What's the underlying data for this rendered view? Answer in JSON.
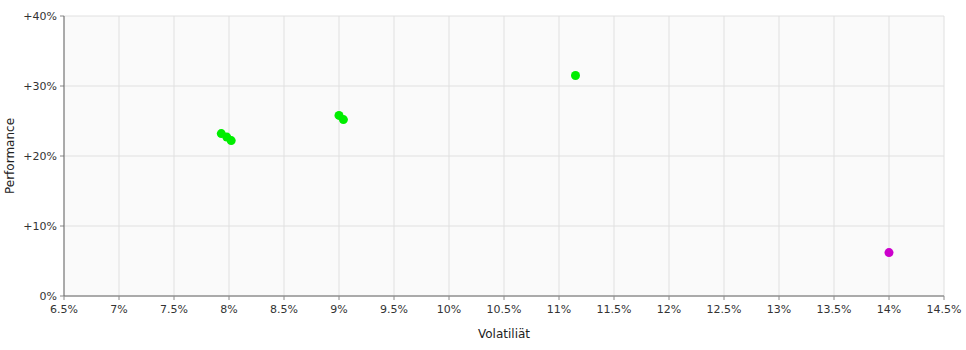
{
  "chart_data": {
    "type": "scatter",
    "xlabel": "Volatiliät",
    "ylabel": "Performance",
    "series": [
      {
        "color": "#00ee00",
        "x": [
          0.0793,
          0.0798,
          0.0802,
          0.09,
          0.0904,
          0.1115
        ],
        "values": [
          0.232,
          0.227,
          0.222,
          0.258,
          0.252,
          0.315
        ]
      },
      {
        "color": "#cc00cc",
        "x": [
          0.14
        ],
        "values": [
          0.062
        ]
      }
    ],
    "xlim": [
      0.065,
      0.145
    ],
    "ylim": [
      0.0,
      0.4
    ],
    "xticks": [
      {
        "value": 0.065,
        "label": "6.5%"
      },
      {
        "value": 0.07,
        "label": "7%"
      },
      {
        "value": 0.075,
        "label": "7.5%"
      },
      {
        "value": 0.08,
        "label": "8%"
      },
      {
        "value": 0.085,
        "label": "8.5%"
      },
      {
        "value": 0.09,
        "label": "9%"
      },
      {
        "value": 0.095,
        "label": "9.5%"
      },
      {
        "value": 0.1,
        "label": "10%"
      },
      {
        "value": 0.105,
        "label": "10.5%"
      },
      {
        "value": 0.11,
        "label": "11%"
      },
      {
        "value": 0.115,
        "label": "11.5%"
      },
      {
        "value": 0.12,
        "label": "12%"
      },
      {
        "value": 0.125,
        "label": "12.5%"
      },
      {
        "value": 0.13,
        "label": "13%"
      },
      {
        "value": 0.135,
        "label": "13.5%"
      },
      {
        "value": 0.14,
        "label": "14%"
      },
      {
        "value": 0.145,
        "label": "14.5%"
      }
    ],
    "yticks": [
      {
        "value": 0.0,
        "label": "0%"
      },
      {
        "value": 0.1,
        "label": "+10%"
      },
      {
        "value": 0.2,
        "label": "+20%"
      },
      {
        "value": 0.3,
        "label": "+30%"
      },
      {
        "value": 0.4,
        "label": "+40%"
      }
    ],
    "grid": true
  }
}
